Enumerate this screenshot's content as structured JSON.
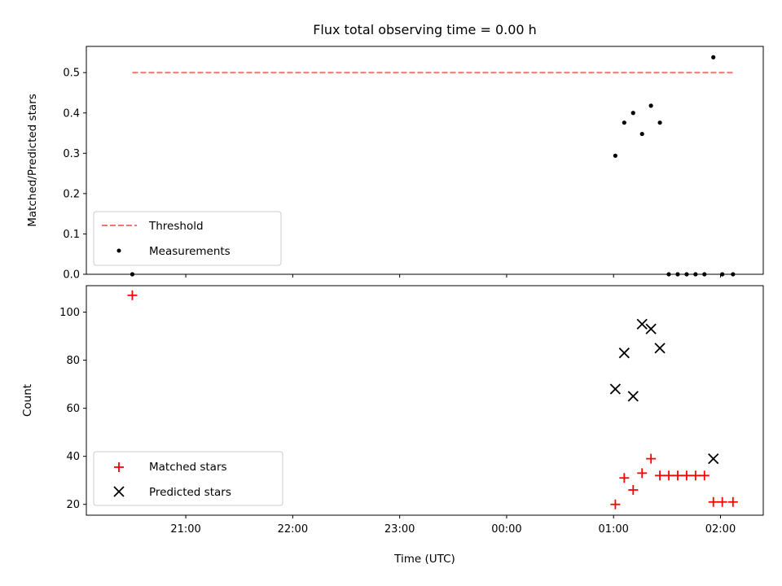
{
  "chart_data": [
    {
      "type": "scatter",
      "title": "Flux total observing time = 0.00 h",
      "xlabel": "",
      "ylabel": "Matched/Predicted stars",
      "ylim": [
        0,
        0.565
      ],
      "yticks": [
        "0.0",
        "0.1",
        "0.2",
        "0.3",
        "0.4",
        "0.5"
      ],
      "legend_position": "lower-left",
      "grid": false,
      "series": [
        {
          "name": "Threshold",
          "style": "dashed-line",
          "color": "#ff7070",
          "x": [
            "20:30",
            "02:07"
          ],
          "y": [
            0.5,
            0.5
          ]
        },
        {
          "name": "Measurements",
          "style": "dot",
          "color": "#000000",
          "x": [
            "20:30",
            "01:01",
            "01:06",
            "01:11",
            "01:16",
            "01:21",
            "01:26",
            "01:31",
            "01:36",
            "01:41",
            "01:46",
            "01:51",
            "01:56",
            "02:01",
            "02:07"
          ],
          "y": [
            0.0,
            0.294,
            0.376,
            0.4,
            0.348,
            0.418,
            0.376,
            0.0,
            0.0,
            0.0,
            0.0,
            0.0,
            0.538,
            0.0,
            0.0
          ]
        }
      ]
    },
    {
      "type": "scatter",
      "title": "",
      "xlabel": "Time (UTC)",
      "ylabel": "Count",
      "ylim": [
        15.5,
        111
      ],
      "yticks": [
        "20",
        "40",
        "60",
        "80",
        "100"
      ],
      "xticks": [
        "21:00",
        "22:00",
        "23:00",
        "00:00",
        "01:00",
        "02:00"
      ],
      "legend_position": "lower-left",
      "grid": false,
      "series": [
        {
          "name": "Matched stars",
          "style": "plus",
          "color": "#ff0000",
          "x": [
            "20:30",
            "01:01",
            "01:06",
            "01:11",
            "01:16",
            "01:21",
            "01:26",
            "01:31",
            "01:36",
            "01:41",
            "01:46",
            "01:51",
            "01:56",
            "02:01",
            "02:07"
          ],
          "y": [
            107,
            20,
            31,
            26,
            33,
            39,
            32,
            32,
            32,
            32,
            32,
            32,
            21,
            21,
            21
          ]
        },
        {
          "name": "Predicted stars",
          "style": "x",
          "color": "#000000",
          "x": [
            "01:01",
            "01:06",
            "01:11",
            "01:16",
            "01:21",
            "01:26",
            "01:56"
          ],
          "y": [
            68,
            83,
            65,
            95,
            93,
            85,
            39
          ]
        }
      ]
    }
  ]
}
